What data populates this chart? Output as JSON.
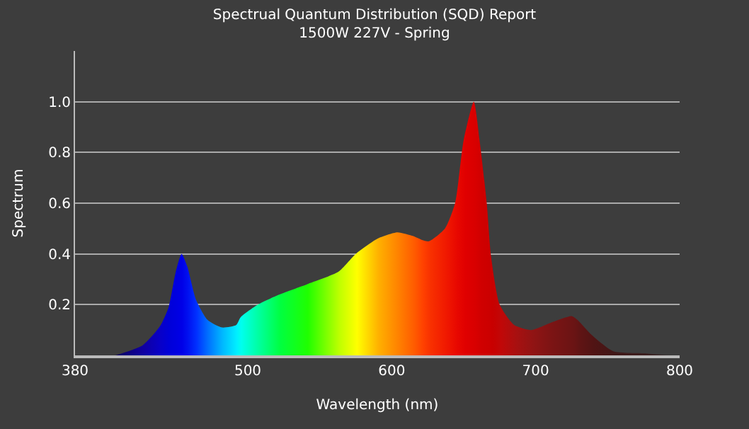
{
  "chart_data": {
    "type": "area",
    "title": "Spectrual Quantum Distribution (SQD) Report",
    "subtitle": "1500W 227V - Spring",
    "xlabel": "Wavelength (nm)",
    "ylabel": "Spectrum",
    "x": [
      408,
      427,
      439,
      445,
      450,
      454,
      458,
      464,
      472,
      482,
      492,
      495,
      507,
      522,
      541,
      563,
      575,
      590,
      604,
      615,
      621,
      626,
      637,
      644,
      650,
      657,
      661,
      666,
      669,
      675,
      685,
      697,
      711,
      725,
      729,
      739,
      754,
      777,
      795
    ],
    "values": [
      0,
      0.04,
      0.115,
      0.19,
      0.33,
      0.4,
      0.35,
      0.22,
      0.14,
      0.11,
      0.12,
      0.15,
      0.2,
      0.24,
      0.28,
      0.33,
      0.4,
      0.46,
      0.485,
      0.47,
      0.455,
      0.45,
      0.5,
      0.6,
      0.85,
      1.0,
      0.85,
      0.6,
      0.39,
      0.2,
      0.12,
      0.1,
      0.13,
      0.155,
      0.14,
      0.08,
      0.016,
      0.008,
      0
    ],
    "colors": [
      "#0a0060",
      "#1000a0",
      "#0800c8",
      "#0000d8",
      "#0000e0",
      "#0000e8",
      "#0010f0",
      "#0030ff",
      "#0070ff",
      "#00b8ff",
      "#00f0ff",
      "#00ffee",
      "#00ffa0",
      "#00ff40",
      "#20ff00",
      "#c0ff00",
      "#ffff00",
      "#ffb000",
      "#ff8000",
      "#ff5a00",
      "#ff4000",
      "#f83000",
      "#f01800",
      "#e80800",
      "#e00000",
      "#d80000",
      "#d00000",
      "#cc0000",
      "#c80000",
      "#c00808",
      "#a81010",
      "#901414",
      "#7a1414",
      "#6a1414",
      "#601414",
      "#501414",
      "#401818",
      "#3a2020",
      "#3a3a3a"
    ],
    "xlim": [
      380,
      800
    ],
    "xticks": [
      380,
      500,
      600,
      700,
      800
    ],
    "ylim": [
      0,
      1.2
    ],
    "yticks": [
      0.2,
      0.4,
      0.6,
      0.8,
      {
        "value": 1,
        "label": "1.0"
      }
    ],
    "grid": "y",
    "legend": false
  }
}
